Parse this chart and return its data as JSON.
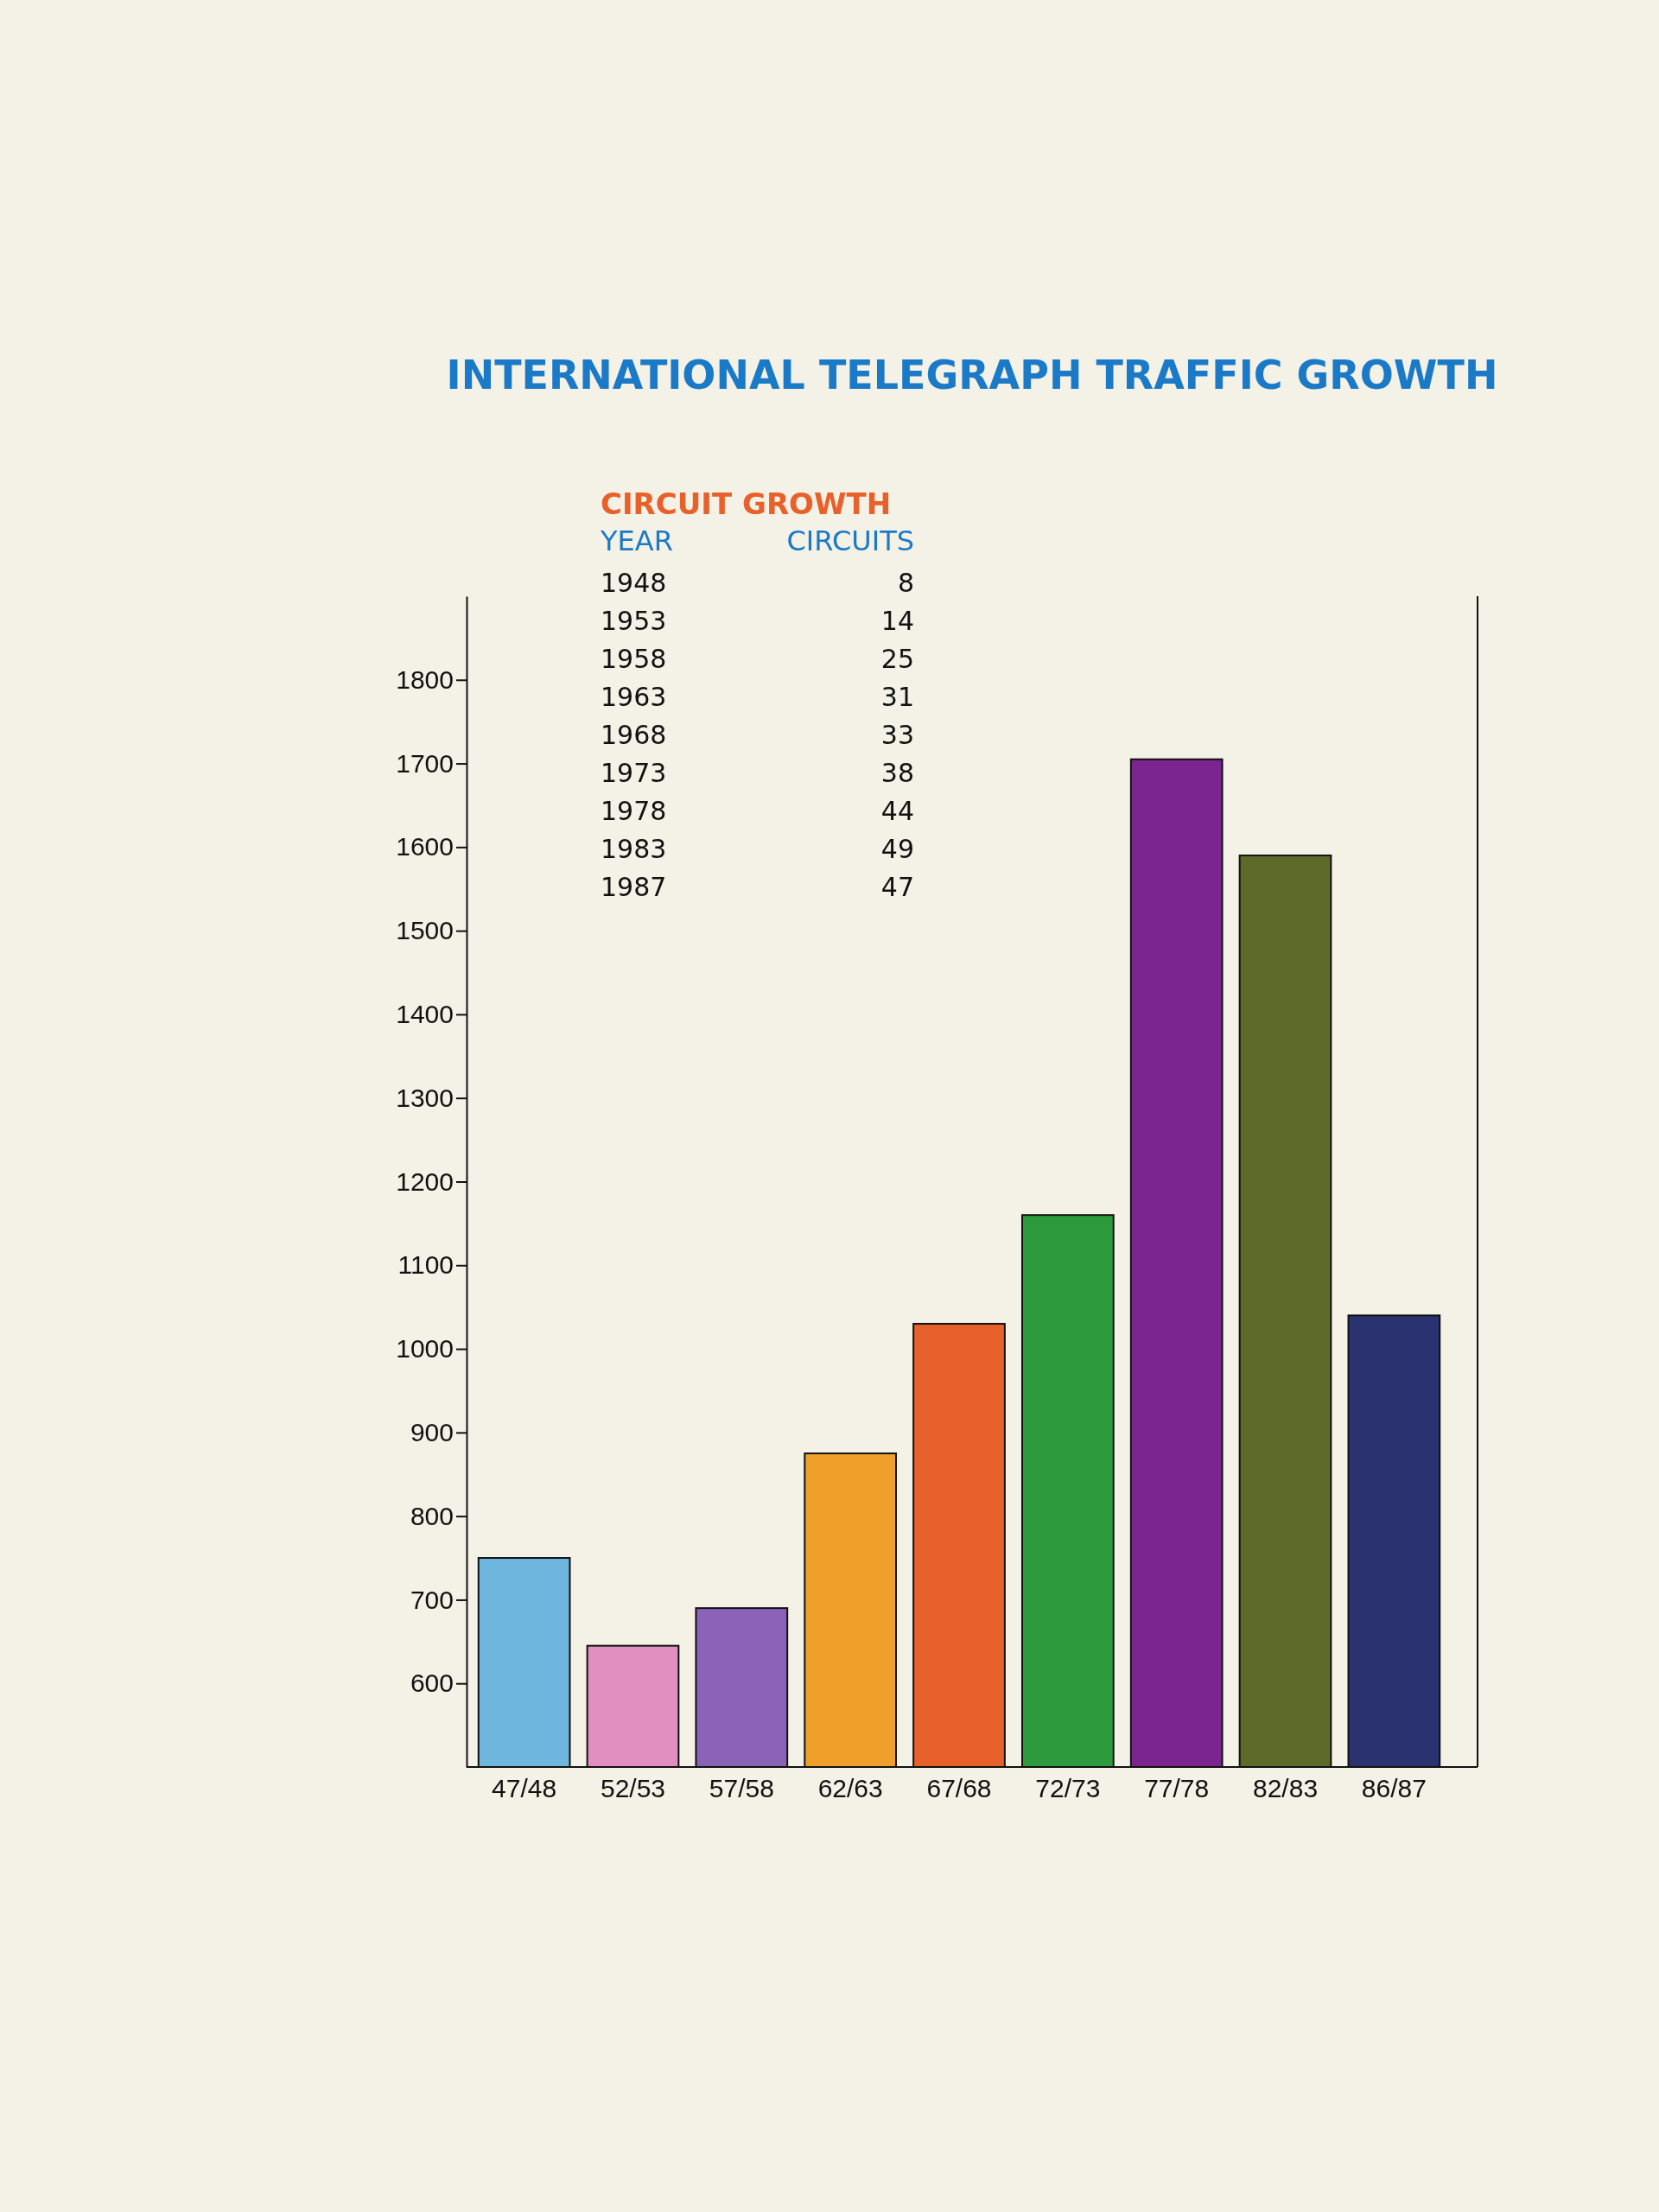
{
  "chart_data": {
    "type": "bar",
    "title": "INTERNATIONAL TELEGRAPH TRAFFIC GROWTH",
    "categories": [
      "47/48",
      "52/53",
      "57/58",
      "62/63",
      "67/68",
      "72/73",
      "77/78",
      "82/83",
      "86/87"
    ],
    "values": [
      750,
      645,
      690,
      875,
      1030,
      1160,
      1705,
      1590,
      1040
    ],
    "colors": [
      "#6fb6df",
      "#e08fc0",
      "#8a62b8",
      "#eea02a",
      "#e8602a",
      "#2e9a3e",
      "#7a2590",
      "#5e6a2a",
      "#2a3270"
    ],
    "ylim": [
      500,
      1900
    ],
    "yticks": [
      600,
      700,
      800,
      900,
      1000,
      1100,
      1200,
      1300,
      1400,
      1500,
      1600,
      1700,
      1800
    ],
    "grid": false,
    "annotations": [
      "CIRCUIT GROWTH",
      "YEAR",
      "CIRCUITS",
      "1948",
      "8",
      "1953",
      "14",
      "1958",
      "25",
      "1963",
      "31",
      "1968",
      "33",
      "1973",
      "38",
      "1978",
      "44",
      "1983",
      "49",
      "1987",
      "47"
    ]
  }
}
